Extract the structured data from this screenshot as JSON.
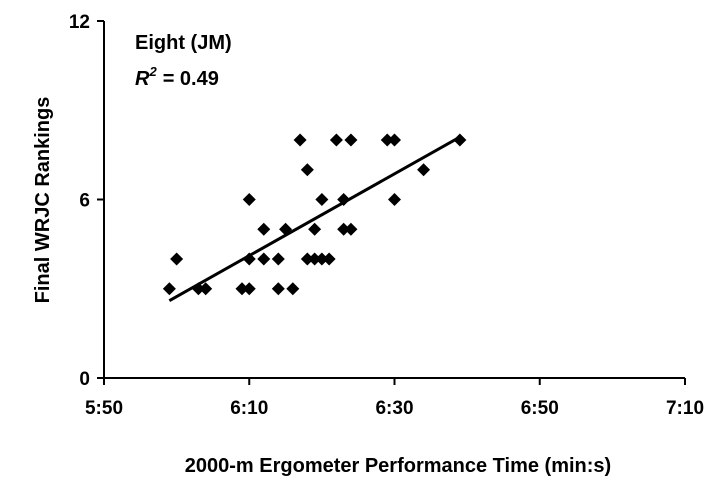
{
  "chart_data": {
    "type": "scatter",
    "xlabel": "2000-m Ergometer Performance Time (min:s)",
    "ylabel": "Final WRJC Rankings",
    "xlim": [
      "5:50",
      "7:10"
    ],
    "ylim": [
      0,
      12
    ],
    "x_ticks": [
      "5:50",
      "6:10",
      "6:30",
      "6:50",
      "7:10"
    ],
    "y_ticks": [
      "0",
      "6",
      "12"
    ],
    "grid": false,
    "annotation_title": "Eight (JM)",
    "annotation_r2_label": "R",
    "annotation_r2_sup": "2",
    "annotation_r2_value": "= 0.49",
    "points": [
      {
        "x": "5:59",
        "y": 3
      },
      {
        "x": "6:00",
        "y": 4
      },
      {
        "x": "6:03",
        "y": 3
      },
      {
        "x": "6:04",
        "y": 3
      },
      {
        "x": "6:09",
        "y": 3
      },
      {
        "x": "6:10",
        "y": 6
      },
      {
        "x": "6:10",
        "y": 4
      },
      {
        "x": "6:10",
        "y": 3
      },
      {
        "x": "6:12",
        "y": 5
      },
      {
        "x": "6:12",
        "y": 4
      },
      {
        "x": "6:14",
        "y": 4
      },
      {
        "x": "6:14",
        "y": 3
      },
      {
        "x": "6:15",
        "y": 5
      },
      {
        "x": "6:16",
        "y": 3
      },
      {
        "x": "6:17",
        "y": 8
      },
      {
        "x": "6:18",
        "y": 7
      },
      {
        "x": "6:18",
        "y": 4
      },
      {
        "x": "6:19",
        "y": 5
      },
      {
        "x": "6:19",
        "y": 4
      },
      {
        "x": "6:20",
        "y": 6
      },
      {
        "x": "6:20",
        "y": 4
      },
      {
        "x": "6:21",
        "y": 4
      },
      {
        "x": "6:22",
        "y": 8
      },
      {
        "x": "6:23",
        "y": 6
      },
      {
        "x": "6:23",
        "y": 5
      },
      {
        "x": "6:24",
        "y": 8
      },
      {
        "x": "6:24",
        "y": 5
      },
      {
        "x": "6:29",
        "y": 8
      },
      {
        "x": "6:30",
        "y": 8
      },
      {
        "x": "6:30",
        "y": 6
      },
      {
        "x": "6:34",
        "y": 7
      },
      {
        "x": "6:39",
        "y": 8
      }
    ],
    "trendline": {
      "x": [
        "5:59",
        "6:39"
      ],
      "y": [
        2.6,
        8.1
      ]
    }
  }
}
